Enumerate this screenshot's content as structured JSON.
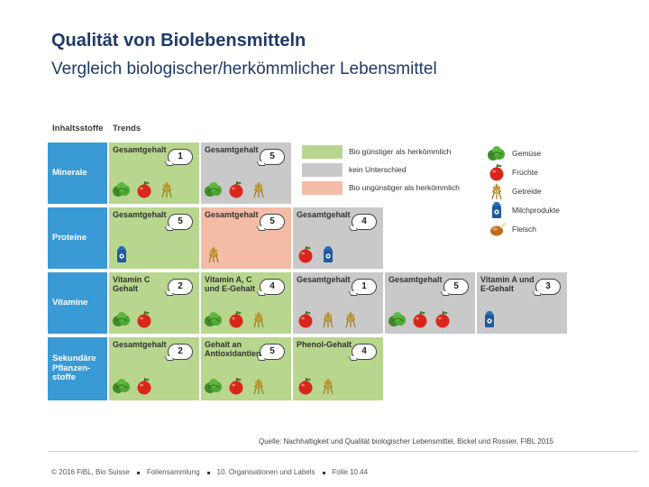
{
  "header": {
    "title": "Qualität von Biolebensmitteln",
    "subtitle": "Vergleich biologischer/herkömmlicher Lebensmittel"
  },
  "table": {
    "col_header_1": "Inhaltsstoffe",
    "col_header_2": "Trends",
    "rows": [
      {
        "label": "Minerale",
        "cells": [
          {
            "label": "Gesamtgehalt",
            "score": "1",
            "color": "green",
            "icons": [
              "vegetable-icon",
              "fruit-icon",
              "grain-icon"
            ]
          },
          {
            "label": "Gesamtgehalt",
            "score": "5",
            "color": "gray",
            "icons": [
              "vegetable-icon",
              "fruit-icon",
              "grain-icon"
            ]
          }
        ]
      },
      {
        "label": "Proteine",
        "cells": [
          {
            "label": "Gesamtgehalt",
            "score": "5",
            "color": "green",
            "icons": [
              "dairy-icon"
            ]
          },
          {
            "label": "Gesamtgehalt",
            "score": "5",
            "color": "salmon",
            "icons": [
              "grain-icon"
            ]
          },
          {
            "label": "Gesamtgehalt",
            "score": "4",
            "color": "gray",
            "icons": [
              "fruit-icon",
              "dairy-icon"
            ]
          }
        ]
      },
      {
        "label": "Vitamine",
        "cells": [
          {
            "label": "Vitamin C Gehalt",
            "score": "2",
            "color": "green",
            "icons": [
              "vegetable-icon",
              "fruit-icon"
            ]
          },
          {
            "label": "Vitamin A, C und E-Gehalt",
            "score": "4",
            "color": "green",
            "icons": [
              "vegetable-icon",
              "fruit-icon",
              "grain-icon"
            ]
          },
          {
            "label": "Gesamtgehalt",
            "score": "1",
            "color": "gray",
            "icons": [
              "fruit-icon",
              "grain-icon",
              "grain-icon"
            ]
          },
          {
            "label": "Gesamtgehalt",
            "score": "5",
            "color": "gray",
            "icons": [
              "vegetable-icon",
              "fruit-icon",
              "fruit-icon"
            ]
          },
          {
            "label": "Vitamin A und E-Gehalt",
            "score": "3",
            "color": "gray",
            "icons": [
              "dairy-icon"
            ]
          }
        ]
      },
      {
        "label": "Sekundäre Pflanzen-stoffe",
        "cells": [
          {
            "label": "Gesamtgehalt",
            "score": "2",
            "color": "green",
            "icons": [
              "vegetable-icon",
              "fruit-icon"
            ]
          },
          {
            "label": "Gehalt an Antioxidantien",
            "score": "5",
            "color": "green",
            "icons": [
              "vegetable-icon",
              "fruit-icon",
              "grain-icon"
            ]
          },
          {
            "label": "Phenol-Gehalt",
            "score": "4",
            "color": "green",
            "icons": [
              "fruit-icon",
              "grain-icon"
            ]
          }
        ]
      }
    ]
  },
  "legend": {
    "colors": [
      {
        "label": "Bio günstiger als herkömmlich",
        "color": "#b8d68e"
      },
      {
        "label": "kein Unterschied",
        "color": "#c9c9c9"
      },
      {
        "label": "Bio ungünstiger als herkömmlich",
        "color": "#f4bca6"
      }
    ],
    "icons": [
      {
        "label": "Gemüse",
        "icon": "vegetable-icon"
      },
      {
        "label": "Früchte",
        "icon": "fruit-icon"
      },
      {
        "label": "Getreide",
        "icon": "grain-icon"
      },
      {
        "label": "Milchprodukte",
        "icon": "dairy-icon"
      },
      {
        "label": "Fleisch",
        "icon": "meat-icon"
      }
    ]
  },
  "source": "Quelle: Nachhaltigkeit und Qualität biologischer Lebensmittel, Bickel und Rossier, FIBL 2015",
  "footer": {
    "copyright": "© 2016 FiBL, Bio Suisse",
    "collection": "Foliensammlung",
    "chapter": "10. Organisationen und Labels",
    "slide": "Folie 10.44"
  }
}
